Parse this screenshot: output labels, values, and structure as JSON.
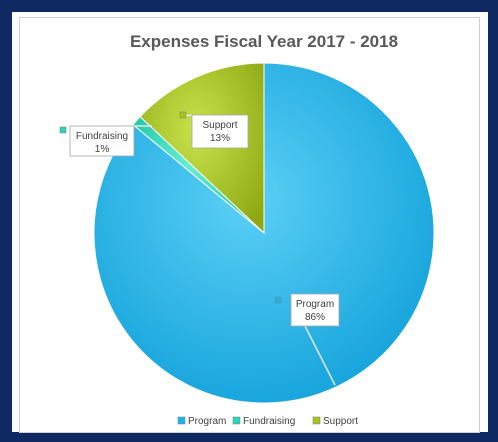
{
  "chart_data": {
    "type": "pie",
    "title": "Expenses Fiscal Year 2017 - 2018",
    "slices": [
      {
        "name": "Program",
        "value": 86,
        "label": "86%",
        "color": "#1cb3ea"
      },
      {
        "name": "Fundraising",
        "value": 1,
        "label": "1%",
        "color": "#2ad6b8"
      },
      {
        "name": "Support",
        "value": 13,
        "label": "13%",
        "color": "#a8c31f"
      }
    ],
    "legend_position": "bottom",
    "legend": [
      "Program",
      "Fundraising",
      "Support"
    ]
  },
  "colors": {
    "border": "#0f2a63",
    "program": "#1cb3ea",
    "fundraising": "#2ad6b8",
    "support": "#a8c31f"
  }
}
